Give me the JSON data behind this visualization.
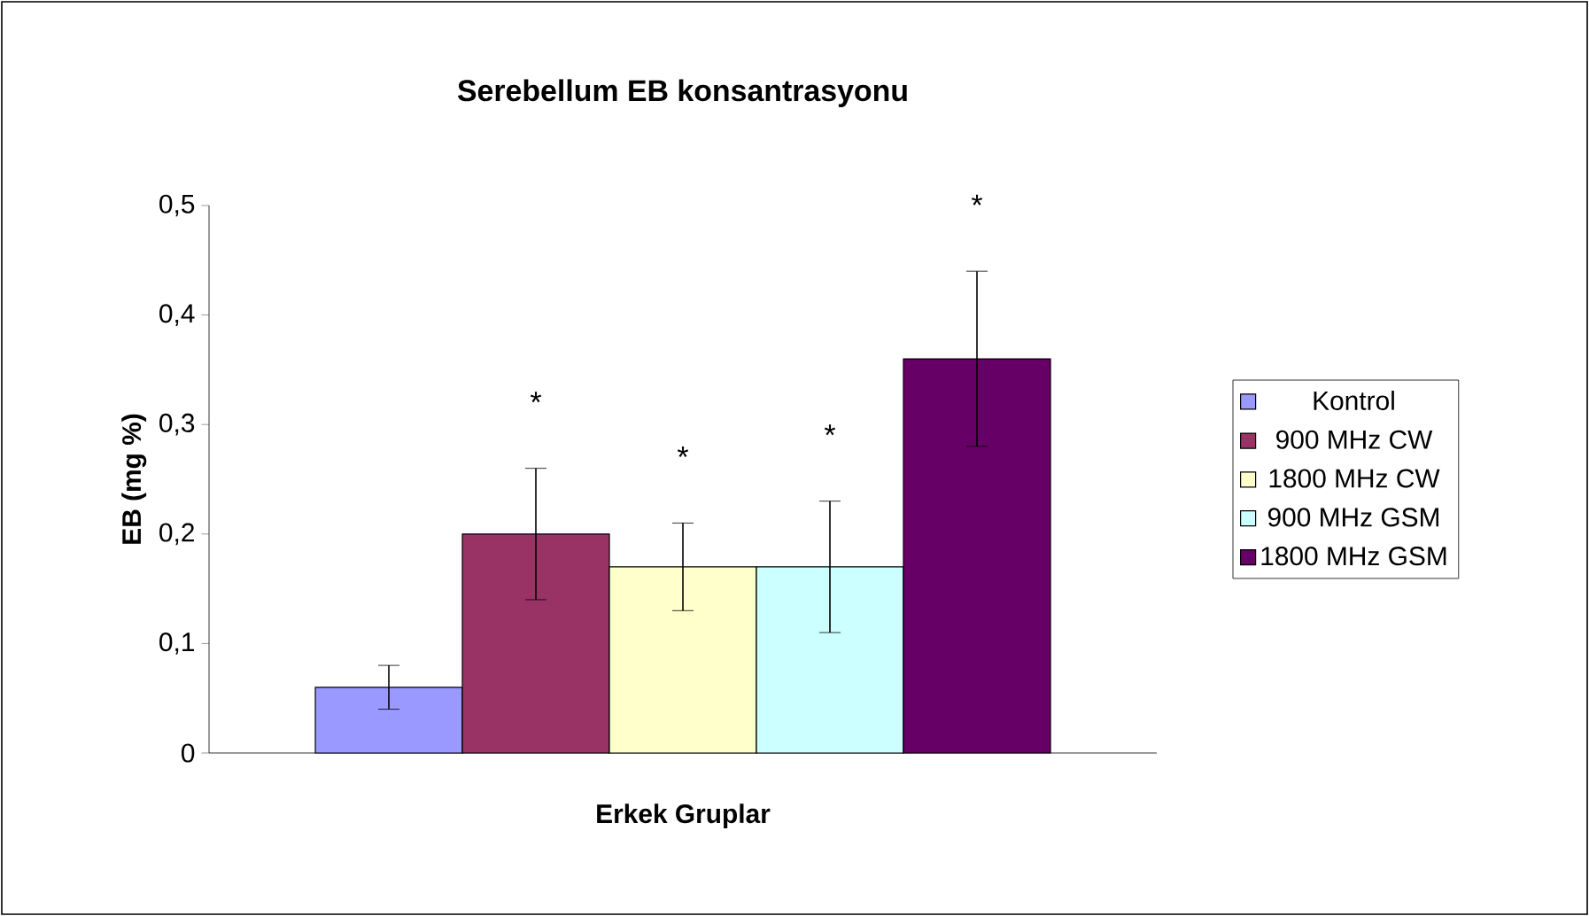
{
  "chart_data": {
    "type": "bar",
    "title": "Serebellum EB konsantrasyonu",
    "xlabel": "Erkek Gruplar",
    "ylabel": "EB (mg %)",
    "categories": [
      null
    ],
    "series": [
      {
        "name": "Kontrol",
        "color": "#9999ff",
        "values": [
          0.06
        ],
        "errors": [
          [
            0.04,
            0.08
          ]
        ]
      },
      {
        "name": "900 MHz CW",
        "color": "#993366",
        "values": [
          0.2
        ],
        "errors": [
          [
            0.14,
            0.26
          ]
        ]
      },
      {
        "name": "1800 MHz CW",
        "color": "#ffffcc",
        "values": [
          0.17
        ],
        "errors": [
          [
            0.13,
            0.21
          ]
        ]
      },
      {
        "name": "900 MHz GSM",
        "color": "#ccffff",
        "values": [
          0.17
        ],
        "errors": [
          [
            0.11,
            0.23
          ]
        ]
      },
      {
        "name": "1800 MHz GSM",
        "color": "#660066",
        "values": [
          0.36
        ],
        "errors": [
          [
            0.28,
            0.44
          ]
        ]
      }
    ],
    "annotations": [
      "*",
      "*",
      "*",
      "*"
    ],
    "ylim": [
      0,
      0.5
    ],
    "yticks": [
      {
        "value": 0,
        "label": "0"
      },
      {
        "value": 0.1,
        "label": "0,1"
      },
      {
        "value": 0.2,
        "label": "0,2"
      },
      {
        "value": 0.3,
        "label": "0,3"
      },
      {
        "value": 0.4,
        "label": "0,4"
      },
      {
        "value": 0.5,
        "label": "0,5"
      }
    ],
    "grid": false,
    "legend": "right"
  }
}
